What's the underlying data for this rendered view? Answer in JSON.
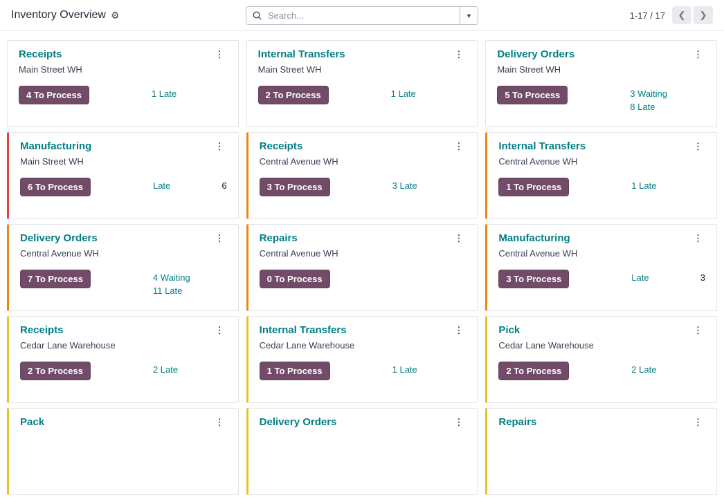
{
  "header": {
    "title": "Inventory Overview",
    "settings_icon": "gear",
    "search": {
      "placeholder": "Search...",
      "value": "",
      "icon": "magnifier",
      "caret_icon": "caret-down"
    },
    "pager": {
      "label": "1-17 / 17",
      "prev_icon": "chevron-left",
      "next_icon": "chevron-right"
    }
  },
  "colors": {
    "title_teal": "#017e84",
    "button_bg": "#714B67",
    "accent_red": "#e5413e",
    "accent_orange": "#ec870e",
    "accent_yellow": "#e4c321"
  },
  "cards": [
    {
      "title": "Receipts",
      "warehouse": "Main Street WH",
      "button": "4 To Process",
      "links": [
        "1 Late"
      ],
      "count": "",
      "accent": "none"
    },
    {
      "title": "Internal Transfers",
      "warehouse": "Main Street WH",
      "button": "2 To Process",
      "links": [
        "1 Late"
      ],
      "count": "",
      "accent": "none"
    },
    {
      "title": "Delivery Orders",
      "warehouse": "Main Street WH",
      "button": "5 To Process",
      "links": [
        "3 Waiting",
        "8 Late"
      ],
      "count": "",
      "accent": "none"
    },
    {
      "title": "Manufacturing",
      "warehouse": "Main Street WH",
      "button": "6 To Process",
      "links": [
        "Late"
      ],
      "count": "6",
      "accent": "red"
    },
    {
      "title": "Receipts",
      "warehouse": "Central Avenue WH",
      "button": "3 To Process",
      "links": [
        "3 Late"
      ],
      "count": "",
      "accent": "orange"
    },
    {
      "title": "Internal Transfers",
      "warehouse": "Central Avenue WH",
      "button": "1 To Process",
      "links": [
        "1 Late"
      ],
      "count": "",
      "accent": "orange"
    },
    {
      "title": "Delivery Orders",
      "warehouse": "Central Avenue WH",
      "button": "7 To Process",
      "links": [
        "4 Waiting",
        "11 Late"
      ],
      "count": "",
      "accent": "orange"
    },
    {
      "title": "Repairs",
      "warehouse": "Central Avenue WH",
      "button": "0 To Process",
      "links": [],
      "count": "",
      "accent": "orange"
    },
    {
      "title": "Manufacturing",
      "warehouse": "Central Avenue WH",
      "button": "3 To Process",
      "links": [
        "Late"
      ],
      "count": "3",
      "accent": "orange"
    },
    {
      "title": "Receipts",
      "warehouse": "Cedar Lane Warehouse",
      "button": "2 To Process",
      "links": [
        "2 Late"
      ],
      "count": "",
      "accent": "yellow"
    },
    {
      "title": "Internal Transfers",
      "warehouse": "Cedar Lane Warehouse",
      "button": "1 To Process",
      "links": [
        "1 Late"
      ],
      "count": "",
      "accent": "yellow"
    },
    {
      "title": "Pick",
      "warehouse": "Cedar Lane Warehouse",
      "button": "2 To Process",
      "links": [
        "2 Late"
      ],
      "count": "",
      "accent": "yellow"
    },
    {
      "title": "Pack",
      "warehouse": "",
      "button": "",
      "links": [],
      "count": "",
      "accent": "yellow"
    },
    {
      "title": "Delivery Orders",
      "warehouse": "",
      "button": "",
      "links": [],
      "count": "",
      "accent": "yellow"
    },
    {
      "title": "Repairs",
      "warehouse": "",
      "button": "",
      "links": [],
      "count": "",
      "accent": "yellow"
    }
  ]
}
